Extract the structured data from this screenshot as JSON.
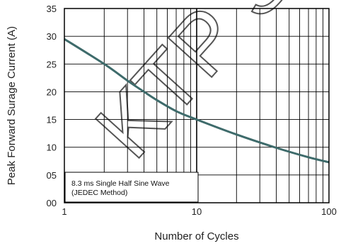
{
  "watermark": "KTP S",
  "chart_data": {
    "type": "line",
    "xlabel": "Number of Cycles",
    "ylabel": "Peak Forward Surage Current (A)",
    "x_scale": "log",
    "xlim": [
      1,
      100
    ],
    "ylim": [
      0,
      35
    ],
    "grid": true,
    "x_ticks": [
      "1",
      "10",
      "100"
    ],
    "y_ticks": [
      "00",
      "05",
      "10",
      "15",
      "20",
      "25",
      "30",
      "35"
    ],
    "annotation": [
      "8.3 ms Single Half Sine Wave",
      "(JEDEC Method)"
    ],
    "series_color": "#3e6b6b",
    "series": [
      {
        "x": [
          1,
          2,
          3,
          4,
          5,
          7,
          10,
          20,
          40,
          70,
          100
        ],
        "y": [
          29.5,
          25,
          22,
          20,
          18.5,
          16.5,
          15,
          12.3,
          9.9,
          8.2,
          7.3
        ]
      }
    ]
  }
}
